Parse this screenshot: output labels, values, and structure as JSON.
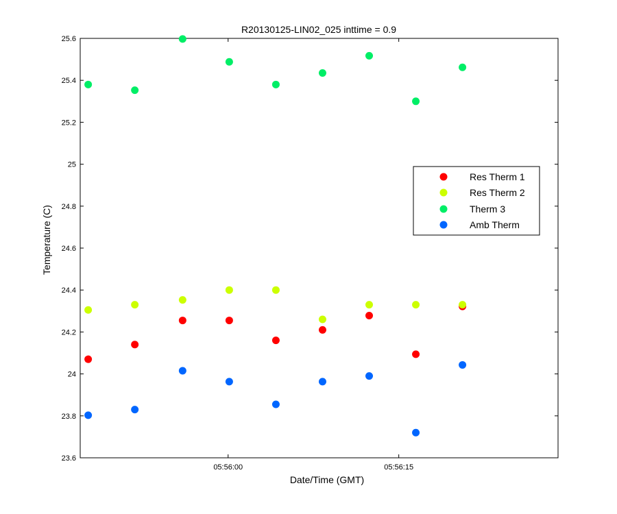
{
  "chart_data": {
    "type": "scatter",
    "title": "R20130125-LIN02_025 inttime = 0.9",
    "xlabel": "Date/Time (GMT)",
    "ylabel": "Temperature (C)",
    "xlim": [
      -13.0,
      29.0
    ],
    "ylim": [
      23.6,
      25.6
    ],
    "x_unit": "seconds relative to 05:56:00",
    "xticks": [
      0,
      15
    ],
    "xtick_labels": [
      "05:56:00",
      "05:56:15"
    ],
    "yticks": [
      23.6,
      23.8,
      24.0,
      24.2,
      24.4,
      24.6,
      24.8,
      25.0,
      25.2,
      25.4,
      25.6
    ],
    "ytick_labels": [
      "23.6",
      "23.8",
      "24",
      "24.2",
      "24.4",
      "24.6",
      "24.8",
      "25",
      "25.2",
      "25.4",
      "25.6"
    ],
    "x": [
      -12.3,
      -8.2,
      -4.0,
      0.1,
      4.2,
      8.3,
      12.4,
      16.5,
      20.6
    ],
    "series": [
      {
        "name": "Res Therm 1",
        "color": "#ff0000",
        "values": [
          24.07,
          24.14,
          24.255,
          24.255,
          24.16,
          24.21,
          24.278,
          24.094,
          24.322
        ]
      },
      {
        "name": "Res Therm 2",
        "color": "#ccff00",
        "values": [
          24.305,
          24.33,
          24.353,
          24.4,
          24.4,
          24.26,
          24.33,
          24.33,
          24.33
        ]
      },
      {
        "name": "Therm 3",
        "color": "#00ee66",
        "values": [
          25.38,
          25.353,
          25.597,
          25.488,
          25.38,
          25.435,
          25.517,
          25.3,
          25.462
        ]
      },
      {
        "name": "Amb Therm",
        "color": "#0066ff",
        "values": [
          23.803,
          23.83,
          24.015,
          23.963,
          23.855,
          23.963,
          23.99,
          23.72,
          24.043
        ]
      }
    ],
    "legend_position": "right-center",
    "grid": false
  }
}
